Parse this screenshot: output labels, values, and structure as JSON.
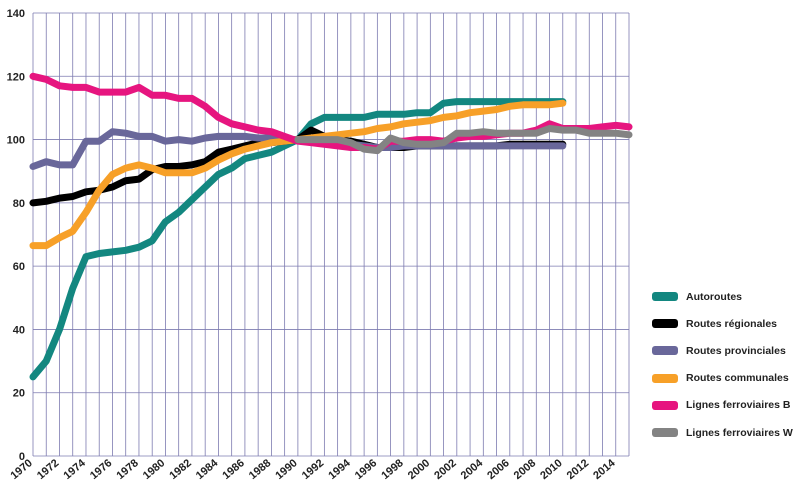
{
  "chart_data": {
    "type": "line",
    "title": "",
    "xlabel": "",
    "ylabel": "",
    "xlim": [
      1970,
      2015
    ],
    "ylim": [
      0,
      140
    ],
    "y_ticks": [
      0,
      20,
      40,
      60,
      80,
      100,
      120,
      140
    ],
    "x_ticks": [
      1970,
      1972,
      1974,
      1976,
      1978,
      1980,
      1982,
      1984,
      1986,
      1988,
      1990,
      1992,
      1994,
      1996,
      1998,
      2000,
      2002,
      2004,
      2006,
      2008,
      2010,
      2012,
      2014
    ],
    "grid": "on",
    "legend_position": "right",
    "series": [
      {
        "name": "Autoroutes",
        "color": "#138780",
        "x": [
          1970,
          1971,
          1972,
          1973,
          1974,
          1975,
          1976,
          1977,
          1978,
          1979,
          1980,
          1981,
          1982,
          1983,
          1984,
          1985,
          1986,
          1987,
          1988,
          1989,
          1990,
          1991,
          1992,
          1993,
          1994,
          1995,
          1996,
          1997,
          1998,
          1999,
          2000,
          2001,
          2002,
          2003,
          2004,
          2005,
          2006,
          2007,
          2008,
          2009,
          2010
        ],
        "y": [
          25,
          30,
          40,
          53,
          63,
          64,
          64.5,
          65,
          66,
          68,
          74,
          77,
          81,
          85,
          89,
          91,
          94,
          95,
          96,
          98,
          100,
          105,
          107,
          107,
          107,
          107,
          108,
          108,
          108,
          108.5,
          108.5,
          111.5,
          112,
          112,
          112,
          112,
          112,
          112,
          112,
          112,
          112
        ]
      },
      {
        "name": "Routes régionales",
        "color": "#000000",
        "x": [
          1970,
          1971,
          1972,
          1973,
          1974,
          1975,
          1976,
          1977,
          1978,
          1979,
          1980,
          1981,
          1982,
          1983,
          1984,
          1985,
          1986,
          1987,
          1988,
          1989,
          1990,
          1991,
          1992,
          1993,
          1994,
          1995,
          1996,
          1997,
          1998,
          1999,
          2000,
          2001,
          2002,
          2003,
          2004,
          2005,
          2006,
          2007,
          2008,
          2009,
          2010
        ],
        "y": [
          80,
          80.5,
          81.5,
          82,
          83.5,
          84,
          85,
          87,
          87.5,
          90.5,
          91.5,
          91.5,
          92,
          93,
          96,
          97,
          98,
          99,
          99,
          99.5,
          100,
          103,
          101,
          100,
          99.5,
          98.5,
          97.5,
          97.5,
          97.5,
          98,
          98,
          98,
          98,
          98,
          98,
          98,
          98.5,
          98.5,
          98.5,
          98.5,
          98.5
        ]
      },
      {
        "name": "Routes provinciales",
        "color": "#69679a",
        "x": [
          1970,
          1971,
          1972,
          1973,
          1974,
          1975,
          1976,
          1977,
          1978,
          1979,
          1980,
          1981,
          1982,
          1983,
          1984,
          1985,
          1986,
          1987,
          1988,
          1989,
          1990,
          1991,
          1992,
          1993,
          1994,
          1995,
          1996,
          1997,
          1998,
          1999,
          2000,
          2001,
          2002,
          2003,
          2004,
          2005,
          2006,
          2007,
          2008,
          2009,
          2010
        ],
        "y": [
          91.5,
          93,
          92,
          92,
          99.5,
          99.5,
          102.5,
          102,
          101,
          101,
          99.5,
          100,
          99.5,
          100.5,
          101,
          101,
          101,
          100.5,
          100.5,
          100,
          100,
          99.5,
          99,
          99,
          98.5,
          98,
          97.5,
          97.5,
          98,
          98,
          98,
          98,
          98,
          98,
          98,
          98,
          98,
          98,
          98,
          98,
          98
        ]
      },
      {
        "name": "Routes communales",
        "color": "#f7a028",
        "x": [
          1970,
          1971,
          1972,
          1973,
          1974,
          1975,
          1976,
          1977,
          1978,
          1979,
          1980,
          1981,
          1982,
          1983,
          1984,
          1985,
          1986,
          1987,
          1988,
          1989,
          1990,
          1991,
          1992,
          1993,
          1994,
          1995,
          1996,
          1997,
          1998,
          1999,
          2000,
          2001,
          2002,
          2003,
          2004,
          2005,
          2006,
          2007,
          2008,
          2009,
          2010
        ],
        "y": [
          66.5,
          66.5,
          69,
          71,
          77,
          84,
          89,
          91,
          92,
          91,
          89.5,
          89.5,
          89.5,
          91,
          93.5,
          95.5,
          97,
          98,
          99,
          99.5,
          100,
          100.5,
          101,
          101.5,
          102,
          102.5,
          103.5,
          104,
          105,
          105.5,
          106,
          107,
          107.5,
          108.5,
          109,
          109.5,
          110.5,
          111,
          111,
          111,
          111.5
        ]
      },
      {
        "name": "Lignes ferroviaires B",
        "color": "#e6157f",
        "x": [
          1970,
          1971,
          1972,
          1973,
          1974,
          1975,
          1976,
          1977,
          1978,
          1979,
          1980,
          1981,
          1982,
          1983,
          1984,
          1985,
          1986,
          1987,
          1988,
          1989,
          1990,
          1991,
          1992,
          1993,
          1994,
          1995,
          1996,
          1997,
          1998,
          1999,
          2000,
          2001,
          2002,
          2003,
          2004,
          2005,
          2006,
          2007,
          2008,
          2009,
          2010,
          2011,
          2012,
          2013,
          2014,
          2015
        ],
        "y": [
          120,
          119,
          117,
          116.5,
          116.5,
          115,
          115,
          115,
          116.5,
          114,
          114,
          113,
          113,
          110.5,
          107,
          105,
          104,
          103,
          102.5,
          101,
          99.5,
          99,
          98.5,
          98,
          97.5,
          97.5,
          97,
          99.5,
          99.5,
          100,
          100,
          99.5,
          100.5,
          101,
          101,
          101.5,
          102,
          102,
          103,
          105,
          103.5,
          103.5,
          103.5,
          104,
          104.5,
          104
        ]
      },
      {
        "name": "Lignes ferroviaires W",
        "color": "#838383",
        "x": [
          1990,
          1991,
          1992,
          1993,
          1994,
          1995,
          1996,
          1997,
          1998,
          1999,
          2000,
          2001,
          2002,
          2003,
          2004,
          2005,
          2006,
          2007,
          2008,
          2009,
          2010,
          2011,
          2012,
          2013,
          2014,
          2015
        ],
        "y": [
          100,
          100,
          100,
          100,
          99,
          97,
          96.5,
          100.5,
          99,
          98.5,
          98.5,
          99,
          102,
          102,
          102.5,
          102,
          102,
          102,
          102,
          103.5,
          103,
          103,
          102,
          102,
          102,
          101.5
        ]
      }
    ]
  }
}
